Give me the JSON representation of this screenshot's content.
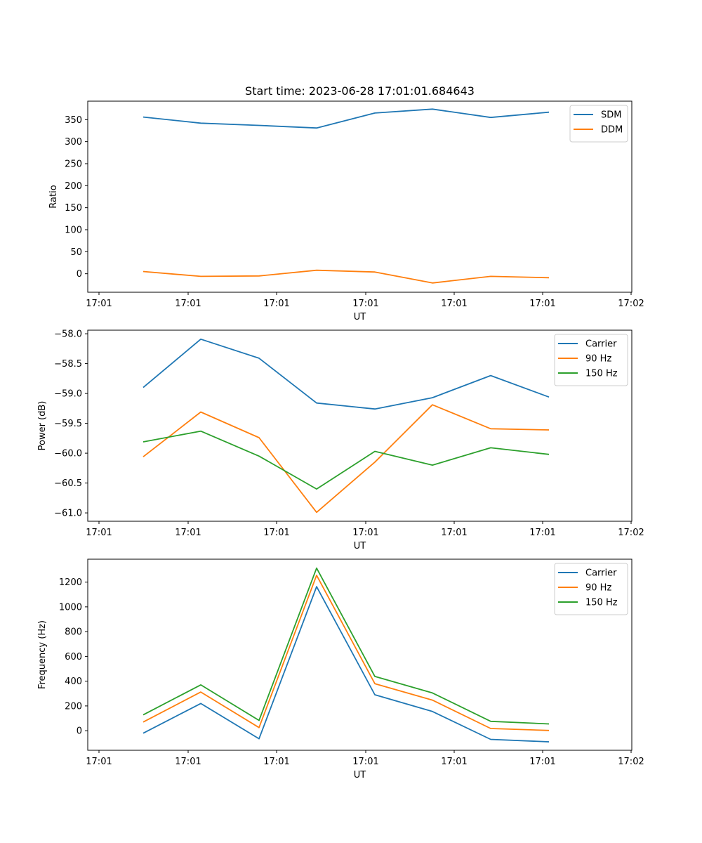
{
  "chart_data": [
    {
      "type": "line",
      "title": "Start time: 2023-06-28 17:01:01.684643",
      "xlabel": "UT",
      "ylabel": "Ratio",
      "x_tick_labels": [
        "17:01",
        "17:01",
        "17:01",
        "17:01",
        "17:01",
        "17:01",
        "17:02"
      ],
      "y_ticks": [
        0,
        50,
        100,
        150,
        200,
        250,
        300,
        350
      ],
      "ylim": [
        -42,
        392
      ],
      "grid": false,
      "legend_position": "top-right",
      "series": [
        {
          "name": "SDM",
          "color": "#1f77b4",
          "values": [
            356,
            342,
            337,
            331,
            365,
            374,
            355,
            367
          ]
        },
        {
          "name": "DDM",
          "color": "#ff7f0e",
          "values": [
            5,
            -6,
            -5,
            8,
            4,
            -21,
            -6,
            -9
          ]
        }
      ]
    },
    {
      "type": "line",
      "title": "",
      "xlabel": "UT",
      "ylabel": "Power (dB)",
      "x_tick_labels": [
        "17:01",
        "17:01",
        "17:01",
        "17:01",
        "17:01",
        "17:01",
        "17:02"
      ],
      "y_ticks": [
        -61.0,
        -60.5,
        -60.0,
        -59.5,
        -59.0,
        -58.5,
        -58.0
      ],
      "y_tick_labels": [
        "−61.0",
        "−60.5",
        "−60.0",
        "−59.5",
        "−59.0",
        "−58.5",
        "−58.0"
      ],
      "ylim": [
        -61.14,
        -57.94
      ],
      "grid": false,
      "legend_position": "top-right",
      "series": [
        {
          "name": "Carrier",
          "color": "#1f77b4",
          "values": [
            -58.9,
            -58.09,
            -58.41,
            -59.16,
            -59.26,
            -59.07,
            -58.7,
            -59.06
          ]
        },
        {
          "name": "90 Hz",
          "color": "#ff7f0e",
          "values": [
            -60.06,
            -59.31,
            -59.74,
            -60.99,
            -60.15,
            -59.19,
            -59.59,
            -59.61
          ]
        },
        {
          "name": "150 Hz",
          "color": "#2ca02c",
          "values": [
            -59.81,
            -59.63,
            -60.05,
            -60.6,
            -59.97,
            -60.2,
            -59.91,
            -60.02
          ]
        }
      ]
    },
    {
      "type": "line",
      "title": "",
      "xlabel": "UT",
      "ylabel": "Frequency (Hz)",
      "x_tick_labels": [
        "17:01",
        "17:01",
        "17:01",
        "17:01",
        "17:01",
        "17:01",
        "17:02"
      ],
      "y_ticks": [
        0,
        200,
        400,
        600,
        800,
        1000,
        1200
      ],
      "ylim": [
        -158,
        1385
      ],
      "grid": false,
      "legend_position": "top-right",
      "series": [
        {
          "name": "Carrier",
          "color": "#1f77b4",
          "values": [
            -20,
            220,
            -65,
            1163,
            290,
            155,
            -70,
            -90
          ]
        },
        {
          "name": "90 Hz",
          "color": "#ff7f0e",
          "values": [
            70,
            312,
            25,
            1255,
            380,
            247,
            18,
            2
          ]
        },
        {
          "name": "150 Hz",
          "color": "#2ca02c",
          "values": [
            128,
            370,
            83,
            1313,
            438,
            305,
            76,
            55
          ]
        }
      ]
    }
  ]
}
